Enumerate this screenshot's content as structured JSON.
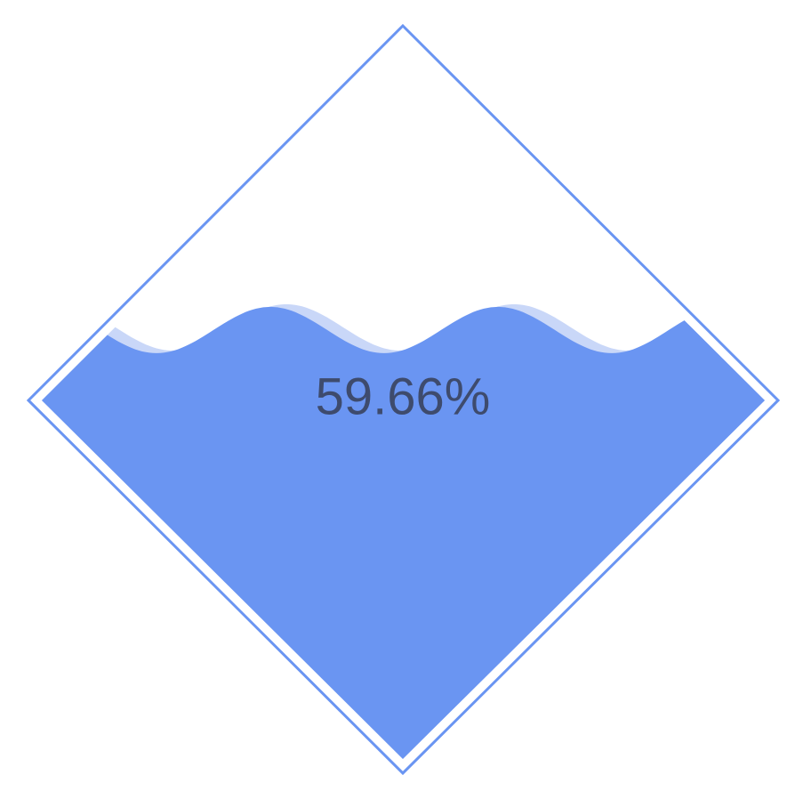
{
  "chart_data": {
    "type": "liquidfill",
    "shape": "diamond",
    "value": 0.5966,
    "label": "59.66%",
    "colors": {
      "liquid": "#6a95f2",
      "liquid_shadow": "#c9d7f8",
      "outline": "#6a95f2",
      "label": "#3e4b6d",
      "background": "#ffffff"
    }
  }
}
